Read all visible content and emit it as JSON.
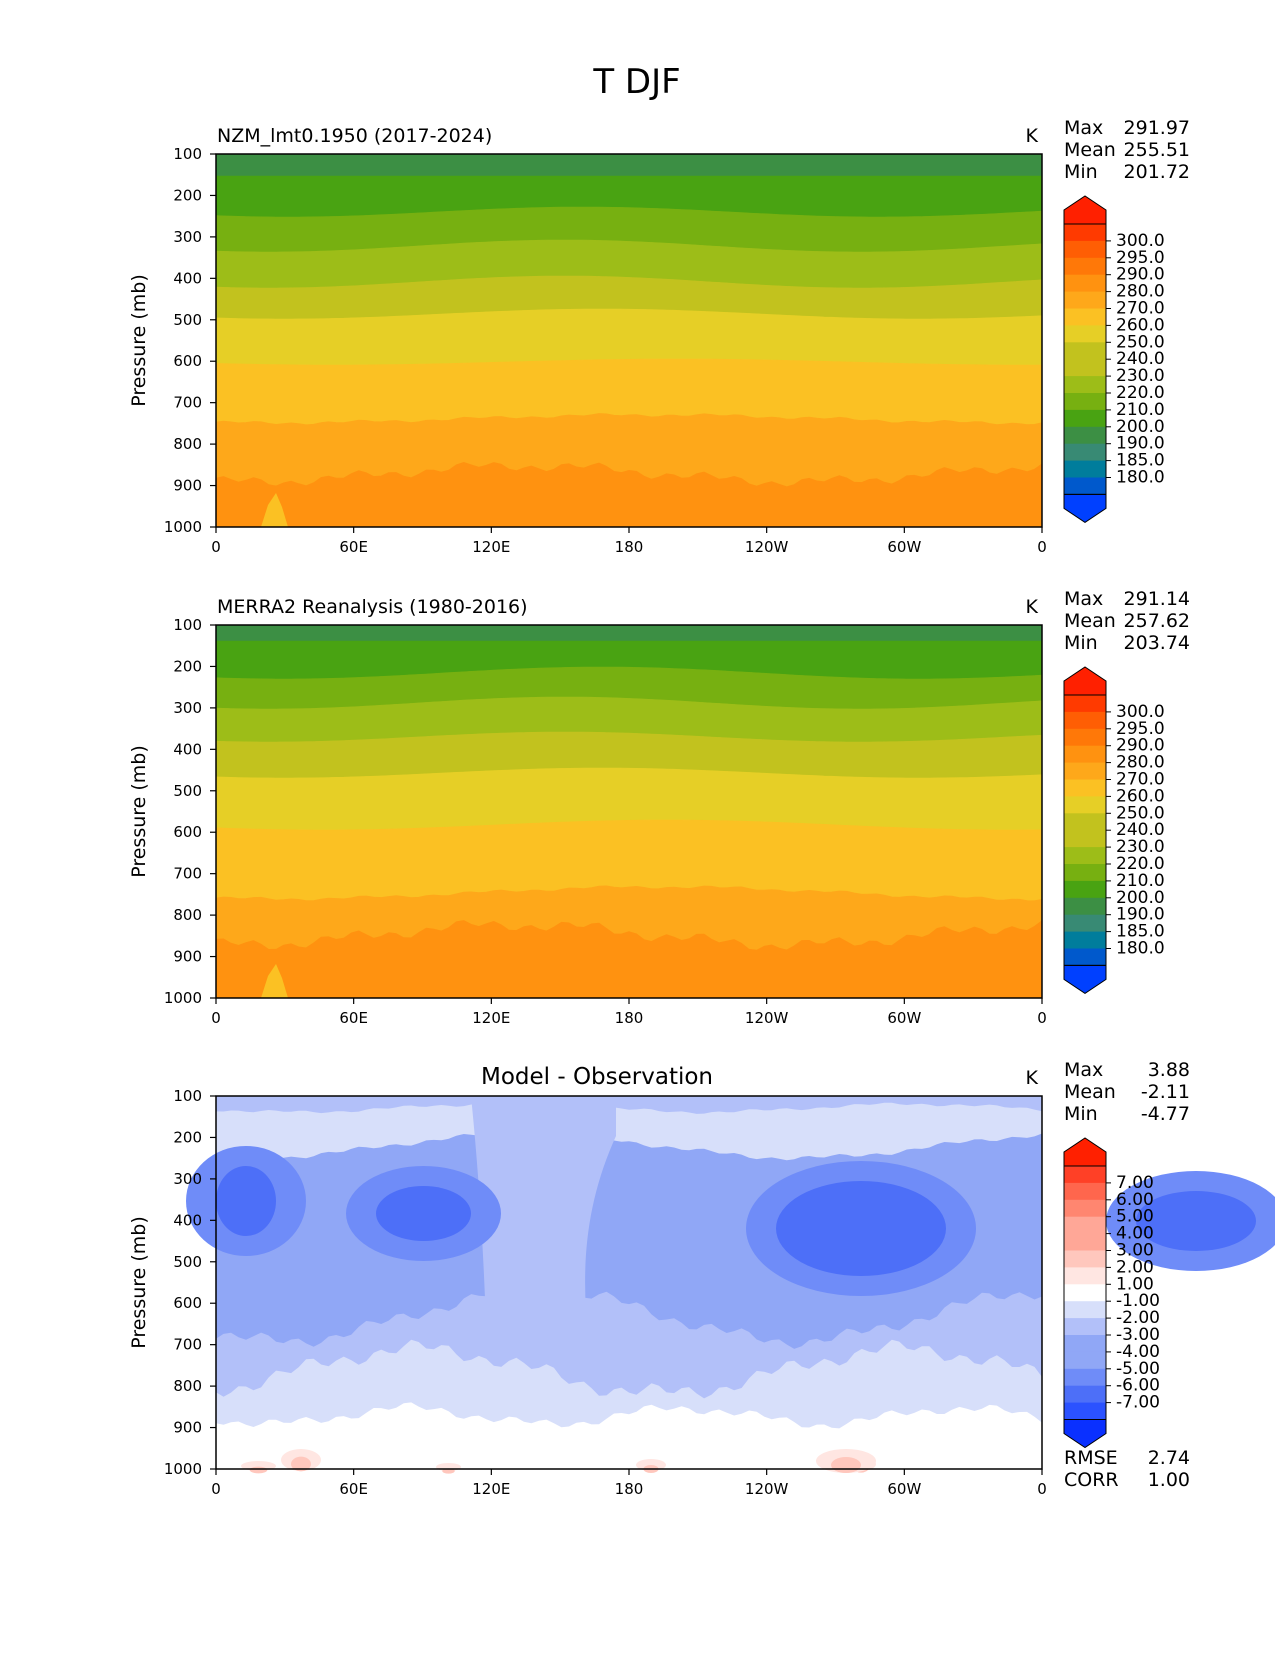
{
  "figure": {
    "title": "T DJF"
  },
  "axes": {
    "xticks": [
      "0",
      "60E",
      "120E",
      "180",
      "120W",
      "60W",
      "0"
    ],
    "yticks": [
      "100",
      "200",
      "300",
      "400",
      "500",
      "600",
      "700",
      "800",
      "900",
      "1000"
    ],
    "ylabel": "Pressure (mb)"
  },
  "colors": {
    "temp_cmap": [
      "#0040ff",
      "#0059cc",
      "#007d9c",
      "#388a74",
      "#3c8f44",
      "#49a312",
      "#77b011",
      "#9dbd18",
      "#c2c21e",
      "#e6cf26",
      "#fbc123",
      "#fea81a",
      "#ff9210",
      "#ff7808",
      "#ff5e04",
      "#ff3a00",
      "#ff2000"
    ],
    "diff_cmap": [
      "#0a30ff",
      "#2b52ff",
      "#4d6ff8",
      "#6f8cf8",
      "#90a7f6",
      "#b2c0f9",
      "#d7dffa",
      "#ffffff",
      "#ffe6e2",
      "#ffc7bd",
      "#ffa797",
      "#ff8670",
      "#ff664d",
      "#ff4026",
      "#ff2000"
    ]
  },
  "chart_data": [
    {
      "type": "contour",
      "title": "NZM_lmt0.1950 (2017-2024)",
      "units": "K",
      "ylabel": "Pressure (mb)",
      "ylim": [
        1000,
        100
      ],
      "x": [
        "0",
        "60E",
        "120E",
        "180",
        "120W",
        "60W",
        "0"
      ],
      "stats": [
        {
          "label": "Max",
          "value": "291.97"
        },
        {
          "label": "Mean",
          "value": "255.51"
        },
        {
          "label": "Min",
          "value": "201.72"
        }
      ],
      "colorbar_levels": [
        "300.0",
        "295.0",
        "290.0",
        "280.0",
        "270.0",
        "260.0",
        "250.0",
        "240.0",
        "230.0",
        "220.0",
        "210.0",
        "200.0",
        "190.0",
        "185.0",
        "180.0"
      ]
    },
    {
      "type": "contour",
      "title": "MERRA2 Reanalysis (1980-2016)",
      "units": "K",
      "ylabel": "Pressure (mb)",
      "ylim": [
        1000,
        100
      ],
      "x": [
        "0",
        "60E",
        "120E",
        "180",
        "120W",
        "60W",
        "0"
      ],
      "stats": [
        {
          "label": "Max",
          "value": "291.14"
        },
        {
          "label": "Mean",
          "value": "257.62"
        },
        {
          "label": "Min",
          "value": "203.74"
        }
      ],
      "colorbar_levels": [
        "300.0",
        "295.0",
        "290.0",
        "280.0",
        "270.0",
        "260.0",
        "250.0",
        "240.0",
        "230.0",
        "220.0",
        "210.0",
        "200.0",
        "190.0",
        "185.0",
        "180.0"
      ]
    },
    {
      "type": "contour",
      "title": "Model - Observation",
      "units": "K",
      "ylabel": "Pressure (mb)",
      "ylim": [
        1000,
        100
      ],
      "x": [
        "0",
        "60E",
        "120E",
        "180",
        "120W",
        "60W",
        "0"
      ],
      "stats": [
        {
          "label": "Max",
          "value": "3.88"
        },
        {
          "label": "Mean",
          "value": "-2.11"
        },
        {
          "label": "Min",
          "value": "-4.77"
        }
      ],
      "extra_stats": [
        {
          "label": "RMSE",
          "value": "2.74"
        },
        {
          "label": "CORR",
          "value": "1.00"
        }
      ],
      "colorbar_levels": [
        "7.00",
        "6.00",
        "5.00",
        "4.00",
        "3.00",
        "2.00",
        "1.00",
        "-1.00",
        "-2.00",
        "-3.00",
        "-4.00",
        "-5.00",
        "-6.00",
        "-7.00"
      ]
    }
  ]
}
